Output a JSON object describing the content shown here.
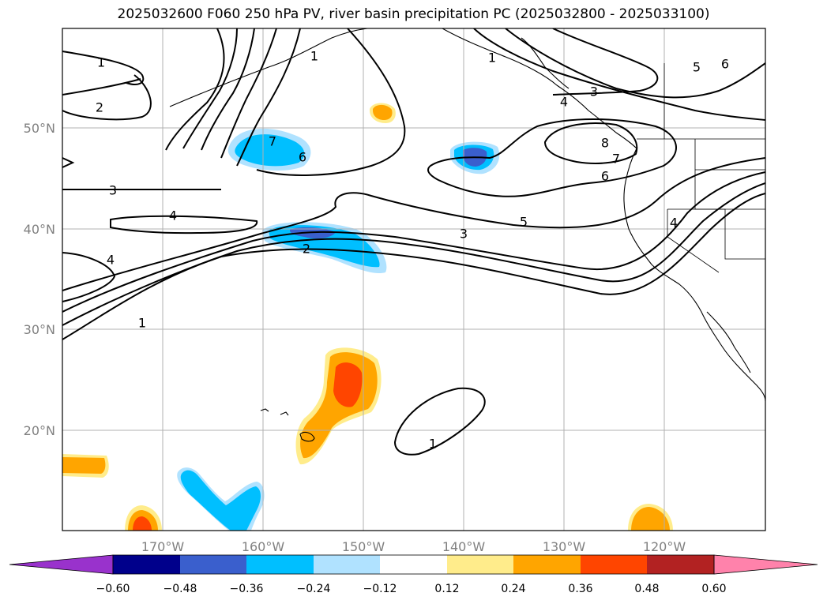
{
  "title": "2025032600 F060 250 hPa PV, river basin precipitation PC (2025032800 - 2025033100)",
  "lon_labels": [
    "170°W",
    "160°W",
    "150°W",
    "140°W",
    "130°W",
    "120°W"
  ],
  "lat_labels": [
    "50°N",
    "40°N",
    "30°N",
    "20°N"
  ],
  "contour_labels": [
    "1",
    "2",
    "3",
    "4",
    "4",
    "1",
    "6",
    "7",
    "5",
    "6",
    "1",
    "3",
    "4",
    "5",
    "3",
    "2",
    "1",
    "7",
    "8",
    "6",
    "4",
    "1"
  ],
  "colorbar": {
    "colors": [
      "#9932cc",
      "#00008b",
      "#3a5fcd",
      "#00bfff",
      "#b0e2ff",
      "#ffffff",
      "#ffec8b",
      "#ffa500",
      "#ff4500",
      "#b22222",
      "#ff82ab"
    ],
    "tick_labels": [
      "−0.60",
      "−0.48",
      "−0.36",
      "−0.24",
      "−0.12",
      "0.12",
      "0.24",
      "0.36",
      "0.48",
      "0.60"
    ]
  }
}
